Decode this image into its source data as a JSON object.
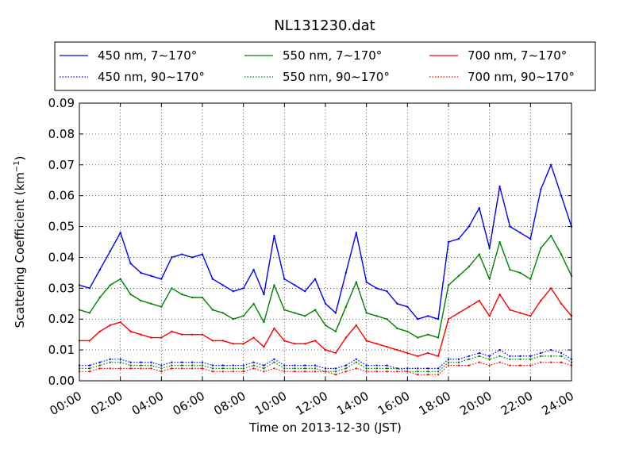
{
  "chart_data": {
    "type": "line",
    "title": "NL131230.dat",
    "xlabel": "Time on 2013-12-30 (JST)",
    "ylabel": "Scattering Coefficient (km",
    "ylabel_superscript": "−1",
    "ylabel_close": ")",
    "xlim": [
      "00:00",
      "24:00"
    ],
    "ylim": [
      0.0,
      0.09
    ],
    "x_ticks": [
      "00:00",
      "02:00",
      "04:00",
      "06:00",
      "08:00",
      "10:00",
      "12:00",
      "14:00",
      "16:00",
      "18:00",
      "20:00",
      "22:00",
      "24:00"
    ],
    "y_ticks": [
      "0.00",
      "0.01",
      "0.02",
      "0.03",
      "0.04",
      "0.05",
      "0.06",
      "0.07",
      "0.08",
      "0.09"
    ],
    "grid": true,
    "legend_position": "top",
    "x": [
      "00:00",
      "00:30",
      "01:00",
      "01:30",
      "02:00",
      "02:30",
      "03:00",
      "03:30",
      "04:00",
      "04:30",
      "05:00",
      "05:30",
      "06:00",
      "06:30",
      "07:00",
      "07:30",
      "08:00",
      "08:30",
      "09:00",
      "09:30",
      "10:00",
      "10:30",
      "11:00",
      "11:30",
      "12:00",
      "12:30",
      "13:00",
      "13:30",
      "14:00",
      "14:30",
      "15:00",
      "15:30",
      "16:00",
      "16:30",
      "17:00",
      "17:30",
      "18:00",
      "18:30",
      "19:00",
      "19:30",
      "20:00",
      "20:30",
      "21:00",
      "21:30",
      "22:00",
      "22:30",
      "23:00",
      "23:30",
      "24:00"
    ],
    "series": [
      {
        "name": "450 nm, 7∼170°",
        "color": "#0000ff",
        "style": "solid",
        "values": [
          0.031,
          0.03,
          0.036,
          0.042,
          0.048,
          0.038,
          0.035,
          0.034,
          0.033,
          0.04,
          0.041,
          0.04,
          0.041,
          0.033,
          0.031,
          0.029,
          0.03,
          0.036,
          0.028,
          0.047,
          0.033,
          0.031,
          0.029,
          0.033,
          0.025,
          0.022,
          0.035,
          0.048,
          0.032,
          0.03,
          0.029,
          0.025,
          0.024,
          0.02,
          0.021,
          0.02,
          0.045,
          0.046,
          0.05,
          0.056,
          0.043,
          0.063,
          0.05,
          0.048,
          0.046,
          0.062,
          0.07,
          0.06,
          0.05
        ]
      },
      {
        "name": "550 nm, 7∼170°",
        "color": "#008000",
        "style": "solid",
        "values": [
          0.023,
          0.022,
          0.027,
          0.031,
          0.033,
          0.028,
          0.026,
          0.025,
          0.024,
          0.03,
          0.028,
          0.027,
          0.027,
          0.023,
          0.022,
          0.02,
          0.021,
          0.025,
          0.019,
          0.031,
          0.023,
          0.022,
          0.021,
          0.023,
          0.018,
          0.016,
          0.024,
          0.032,
          0.022,
          0.021,
          0.02,
          0.017,
          0.016,
          0.014,
          0.015,
          0.014,
          0.031,
          0.034,
          0.037,
          0.041,
          0.033,
          0.045,
          0.036,
          0.035,
          0.033,
          0.043,
          0.047,
          0.041,
          0.034
        ]
      },
      {
        "name": "700 nm, 7∼170°",
        "color": "#ff0000",
        "style": "solid",
        "values": [
          0.013,
          0.013,
          0.016,
          0.018,
          0.019,
          0.016,
          0.015,
          0.014,
          0.014,
          0.016,
          0.015,
          0.015,
          0.015,
          0.013,
          0.013,
          0.012,
          0.012,
          0.014,
          0.011,
          0.017,
          0.013,
          0.012,
          0.012,
          0.013,
          0.01,
          0.009,
          0.014,
          0.018,
          0.013,
          0.012,
          0.011,
          0.01,
          0.009,
          0.008,
          0.009,
          0.008,
          0.02,
          0.022,
          0.024,
          0.026,
          0.021,
          0.028,
          0.023,
          0.022,
          0.021,
          0.026,
          0.03,
          0.025,
          0.021
        ]
      },
      {
        "name": "450 nm, 90∼170°",
        "color": "#0000ff",
        "style": "dotted",
        "values": [
          0.005,
          0.005,
          0.006,
          0.007,
          0.007,
          0.006,
          0.006,
          0.006,
          0.005,
          0.006,
          0.006,
          0.006,
          0.006,
          0.005,
          0.005,
          0.005,
          0.005,
          0.006,
          0.005,
          0.007,
          0.005,
          0.005,
          0.005,
          0.005,
          0.004,
          0.004,
          0.005,
          0.007,
          0.005,
          0.005,
          0.005,
          0.004,
          0.004,
          0.004,
          0.004,
          0.004,
          0.007,
          0.007,
          0.008,
          0.009,
          0.008,
          0.01,
          0.008,
          0.008,
          0.008,
          0.009,
          0.01,
          0.009,
          0.007
        ]
      },
      {
        "name": "550 nm, 90∼170°",
        "color": "#008000",
        "style": "dotted",
        "values": [
          0.004,
          0.004,
          0.005,
          0.006,
          0.006,
          0.005,
          0.005,
          0.005,
          0.004,
          0.005,
          0.005,
          0.005,
          0.005,
          0.004,
          0.004,
          0.004,
          0.004,
          0.005,
          0.004,
          0.006,
          0.004,
          0.004,
          0.004,
          0.004,
          0.003,
          0.003,
          0.004,
          0.006,
          0.004,
          0.004,
          0.004,
          0.004,
          0.003,
          0.003,
          0.003,
          0.003,
          0.006,
          0.006,
          0.007,
          0.008,
          0.007,
          0.008,
          0.007,
          0.007,
          0.007,
          0.008,
          0.008,
          0.008,
          0.006
        ]
      },
      {
        "name": "700 nm, 90∼170°",
        "color": "#ff0000",
        "style": "dotted",
        "values": [
          0.003,
          0.003,
          0.004,
          0.004,
          0.004,
          0.004,
          0.004,
          0.004,
          0.003,
          0.004,
          0.004,
          0.004,
          0.004,
          0.003,
          0.003,
          0.003,
          0.003,
          0.004,
          0.003,
          0.004,
          0.003,
          0.003,
          0.003,
          0.003,
          0.003,
          0.002,
          0.003,
          0.004,
          0.003,
          0.003,
          0.003,
          0.003,
          0.003,
          0.002,
          0.002,
          0.002,
          0.005,
          0.005,
          0.005,
          0.006,
          0.005,
          0.006,
          0.005,
          0.005,
          0.005,
          0.006,
          0.006,
          0.006,
          0.005
        ]
      }
    ]
  }
}
